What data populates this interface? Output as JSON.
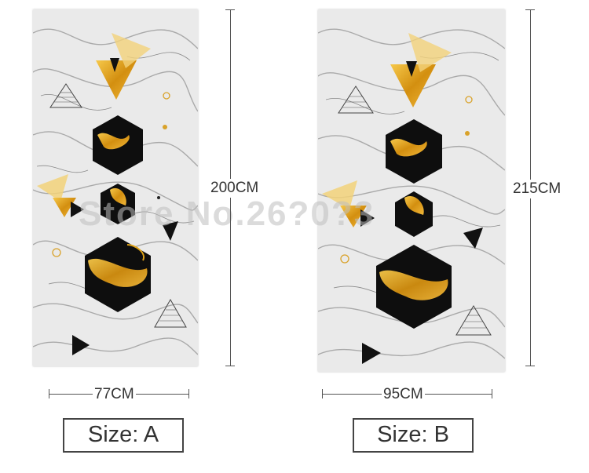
{
  "watermark": "Store No.26?0?3",
  "variants": [
    {
      "width_label": "77CM",
      "height_label": "200CM",
      "size_label": "Size: A"
    },
    {
      "width_label": "95CM",
      "height_label": "215CM",
      "size_label": "Size: B"
    }
  ],
  "colors": {
    "gold": "#e0a318",
    "black": "#0d0d0d",
    "marble": "#e9e9e9",
    "line": "#555555"
  }
}
